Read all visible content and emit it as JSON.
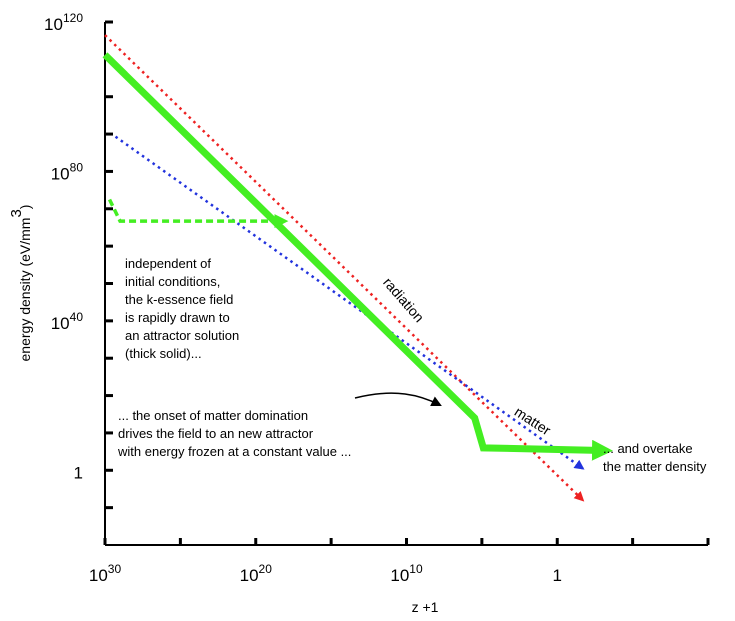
{
  "chart_data": {
    "type": "line",
    "xlabel": "z +1",
    "ylabel": {
      "text": "energy density (eV/mm",
      "sup": "3",
      "tail": ")"
    },
    "xscale": "log",
    "yscale": "log",
    "xlim": [
      1e+30,
      1e-10
    ],
    "ylim": [
      1e-20,
      1e+120
    ],
    "xticks": [
      {
        "value": 1e+30,
        "label": "10",
        "label_exponent": "30"
      },
      {
        "value": 1e+25,
        "label": null
      },
      {
        "value": 1e+20,
        "label": "10",
        "label_exponent": "20"
      },
      {
        "value": 1000000000000000.0,
        "label": null
      },
      {
        "value": 10000000000.0,
        "label": "10",
        "label_exponent": "10"
      },
      {
        "value": 100000.0,
        "label": null
      },
      1,
      {
        "value": 1e-05,
        "label": null
      },
      {
        "value": 1e-10,
        "label": null
      }
    ],
    "yticks": [
      {
        "value": 1e-10,
        "label": null
      },
      1,
      {
        "value": 10000000000.0,
        "label": null
      },
      {
        "value": 1e+20,
        "label": null
      },
      {
        "value": 1e+30,
        "label": null
      },
      {
        "value": 1e+40,
        "label": "10",
        "label_exponent": "40"
      },
      {
        "value": 1e+50,
        "label": null
      },
      {
        "value": 1e+60,
        "label": null
      },
      {
        "value": 1e+70,
        "label": null
      },
      {
        "value": 1e+80,
        "label": "10",
        "label_exponent": "80"
      },
      {
        "value": 1e+90,
        "label": null
      },
      {
        "value": 1e+100,
        "label": null
      },
      {
        "value": 1e+110,
        "label": null
      },
      {
        "value": 1e+120,
        "label": "10",
        "label_exponent": "120"
      }
    ],
    "series": [
      {
        "name": "radiation",
        "color": "#ee2222",
        "style": "dotted",
        "width": 2.5,
        "arrow": true,
        "x": [
          1e+30,
          0.02
        ],
        "values": [
          3e+116,
          1e-08
        ]
      },
      {
        "name": "matter",
        "color": "#2233dd",
        "style": "dotted",
        "width": 2.5,
        "arrow": true,
        "x": [
          2e+29,
          0.02
        ],
        "values": [
          2e+89,
          3
        ]
      },
      {
        "color": "#44ee22",
        "style": "solid",
        "width": 7,
        "arrow": true,
        "x": [
          1e+30,
          300000.0,
          80000.0,
          0.001
        ],
        "values": [
          1.6e+111,
          100000000000000.0,
          1000000.0,
          200000.0
        ]
      },
      {
        "color": "#44ee22",
        "style": "dashed",
        "width": 3.5,
        "arrow": true,
        "x": [
          5e+29,
          1e+29,
          2e+18
        ],
        "values": [
          3e+72,
          5e+66,
          5e+66
        ]
      }
    ],
    "annotations": [
      [
        "independent of",
        "initial conditions,",
        "the k-essence field",
        "is rapidly drawn to",
        "an attractor solution",
        "(thick solid)..."
      ],
      [
        "... the onset of matter domination",
        "drives the field to an new attractor",
        "with energy frozen at a constant value  ..."
      ],
      [
        "... and overtake",
        "the matter density"
      ]
    ]
  }
}
